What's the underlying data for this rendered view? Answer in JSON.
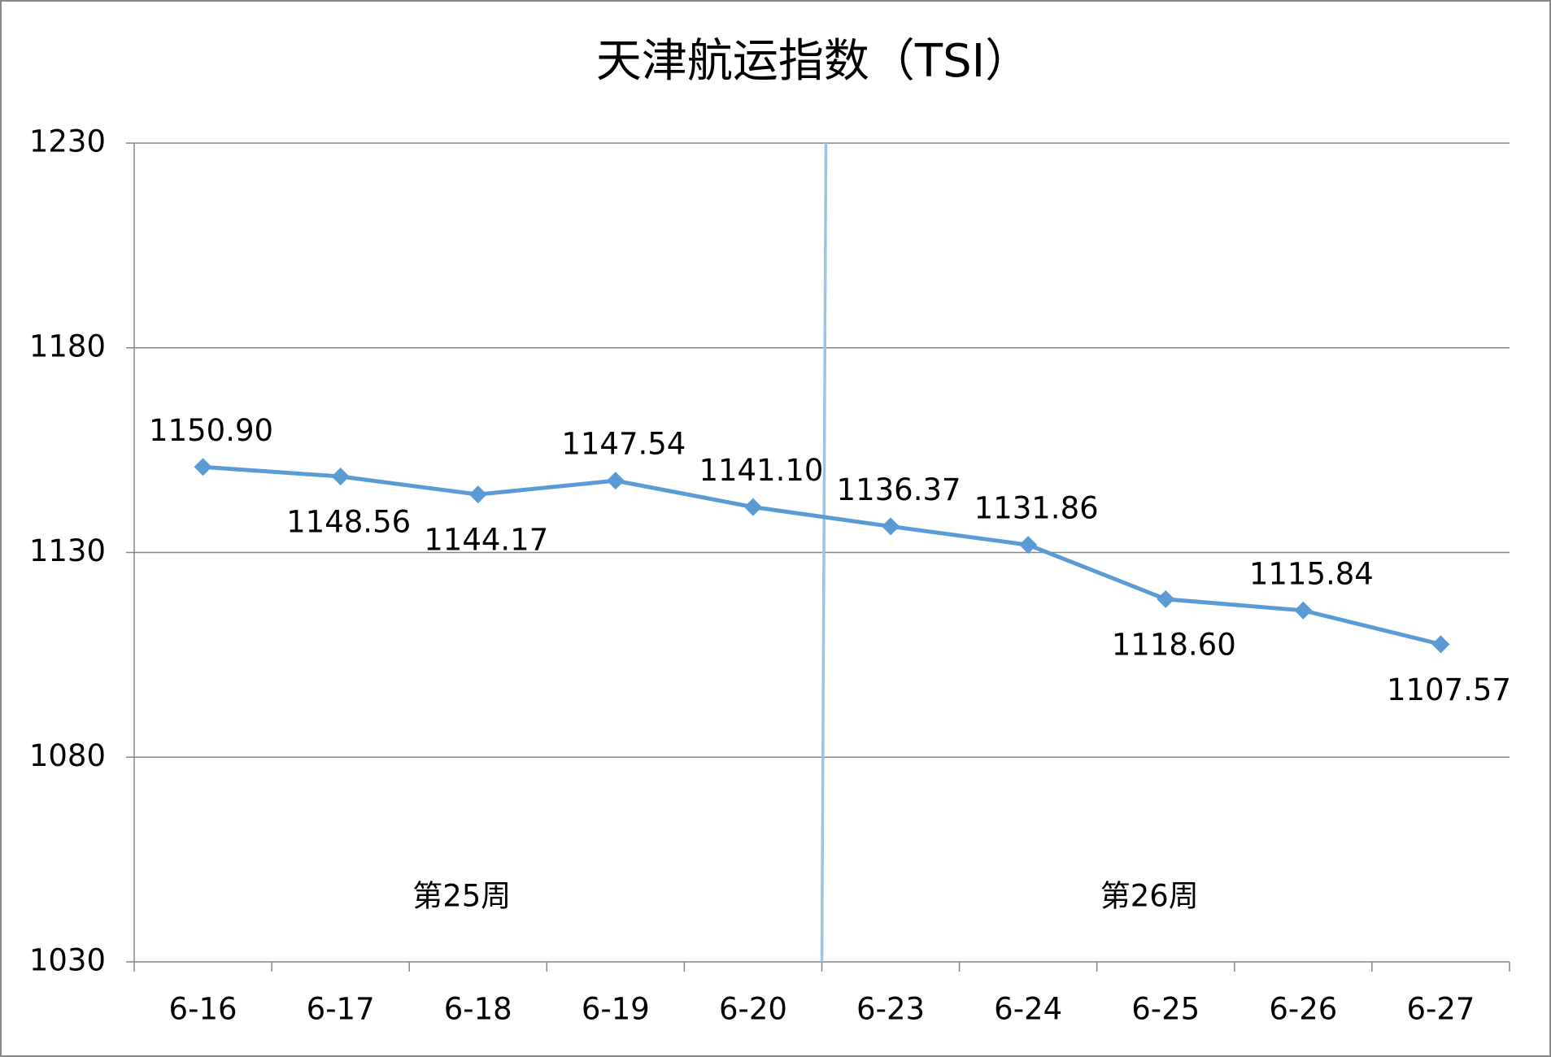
{
  "chart_data": {
    "type": "line",
    "title": "天津航运指数（TSI）",
    "categories": [
      "6-16",
      "6-17",
      "6-18",
      "6-19",
      "6-20",
      "6-23",
      "6-24",
      "6-25",
      "6-26",
      "6-27"
    ],
    "series": [
      {
        "name": "TSI",
        "color": "#5b9bd5",
        "values": [
          1150.9,
          1148.56,
          1144.17,
          1147.54,
          1141.1,
          1136.37,
          1131.86,
          1118.6,
          1115.84,
          1107.57
        ],
        "value_labels": [
          "1150.90",
          "1148.56",
          "1144.17",
          "1147.54",
          "1141.10",
          "1136.37",
          "1131.86",
          "1118.60",
          "1115.84",
          "1107.57"
        ]
      }
    ],
    "annotations": [
      "第25周",
      "第26周"
    ],
    "ylim": [
      1030,
      1230
    ],
    "yticks": [
      1030,
      1080,
      1130,
      1180,
      1230
    ],
    "grid": true
  }
}
